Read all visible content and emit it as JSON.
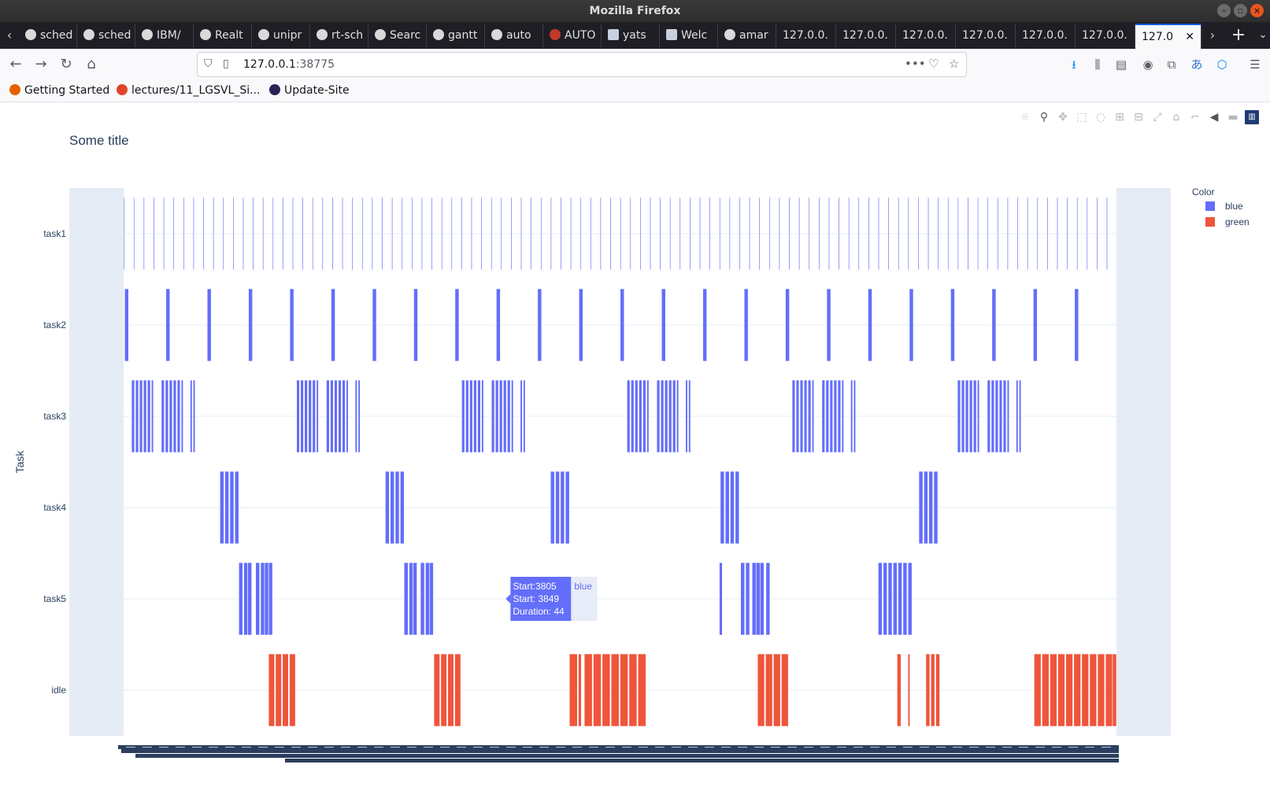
{
  "window": {
    "title": "Mozilla Firefox"
  },
  "tabs": [
    {
      "label": "sched",
      "icon": "github-icon"
    },
    {
      "label": "sched",
      "icon": "github-icon"
    },
    {
      "label": "IBM/",
      "icon": "github-icon"
    },
    {
      "label": "Realt",
      "icon": "github-icon"
    },
    {
      "label": "unipr",
      "icon": "github-icon"
    },
    {
      "label": "rt-sch",
      "icon": "github-icon"
    },
    {
      "label": "Searc",
      "icon": "github-icon"
    },
    {
      "label": "gantt",
      "icon": "github-icon"
    },
    {
      "label": "auto",
      "icon": "github-icon"
    },
    {
      "label": "AUTO",
      "icon": "autosar-icon"
    },
    {
      "label": "yats",
      "icon": "document-icon"
    },
    {
      "label": "Welc",
      "icon": "document-icon"
    },
    {
      "label": "amar",
      "icon": "github-icon"
    },
    {
      "label": "127.0.0.",
      "icon": ""
    },
    {
      "label": "127.0.0.",
      "icon": ""
    },
    {
      "label": "127.0.0.",
      "icon": ""
    },
    {
      "label": "127.0.0.",
      "icon": ""
    },
    {
      "label": "127.0.0.",
      "icon": ""
    },
    {
      "label": "127.0.0.",
      "icon": ""
    },
    {
      "label": "127.0",
      "icon": "",
      "active": true
    }
  ],
  "navbar": {
    "url_host": "127.0.0.1",
    "url_port": ":38775"
  },
  "bookmarks": [
    {
      "label": "Getting Started",
      "icon": "firefox-icon"
    },
    {
      "label": "lectures/11_LGSVL_Si...",
      "icon": "gitlab-icon"
    },
    {
      "label": "Update-Site",
      "icon": "eclipse-icon"
    }
  ],
  "chart_data": {
    "type": "gantt",
    "title": "Some title",
    "ylabel": "Task",
    "xlabel": "",
    "categories": [
      "task1",
      "task2",
      "task3",
      "task4",
      "task5",
      "idle"
    ],
    "legend": {
      "title": "Color",
      "position": "top-right",
      "items": [
        {
          "name": "blue",
          "color": "#636efa"
        },
        {
          "name": "green",
          "color": "#ef553b"
        }
      ]
    },
    "xlim": [
      0,
      10000
    ],
    "series": [
      {
        "name": "task1",
        "color": "blue",
        "period": 100,
        "duration": 10,
        "start": 0,
        "count": 100
      },
      {
        "name": "task2",
        "color": "blue",
        "period": 416,
        "duration": 40,
        "start": 10,
        "count": 24
      },
      {
        "name": "task3",
        "color": "blue",
        "bursts": [
          80,
          1742,
          3405,
          5070,
          6733,
          8399
        ],
        "burst_pattern": [
          [
            0,
            30
          ],
          [
            40,
            30
          ],
          [
            80,
            30
          ],
          [
            120,
            30
          ],
          [
            160,
            30
          ],
          [
            200,
            20
          ],
          [
            300,
            30
          ],
          [
            340,
            30
          ],
          [
            380,
            30
          ],
          [
            420,
            30
          ],
          [
            460,
            30
          ],
          [
            500,
            20
          ],
          [
            590,
            20
          ],
          [
            620,
            20
          ]
        ]
      },
      {
        "name": "task4",
        "color": "blue",
        "bursts": [
          970,
          2636,
          4300,
          6010,
          8010
        ],
        "burst_pattern": [
          [
            0,
            40
          ],
          [
            50,
            40
          ],
          [
            100,
            40
          ],
          [
            150,
            40
          ]
        ]
      },
      {
        "name": "task5",
        "color": "blue",
        "segments": [
          [
            1160,
            40
          ],
          [
            1210,
            40
          ],
          [
            1250,
            40
          ],
          [
            1330,
            40
          ],
          [
            1380,
            40
          ],
          [
            1420,
            40
          ],
          [
            1460,
            40
          ],
          [
            2825,
            40
          ],
          [
            2875,
            40
          ],
          [
            2915,
            40
          ],
          [
            2990,
            40
          ],
          [
            3040,
            40
          ],
          [
            3080,
            40
          ],
          [
            6000,
            30
          ],
          [
            6215,
            40
          ],
          [
            6265,
            40
          ],
          [
            6330,
            40
          ],
          [
            6370,
            40
          ],
          [
            6410,
            40
          ],
          [
            6470,
            40
          ],
          [
            7600,
            40
          ],
          [
            7650,
            40
          ],
          [
            7700,
            40
          ],
          [
            7750,
            40
          ],
          [
            7800,
            40
          ],
          [
            7850,
            40
          ],
          [
            7900,
            40
          ]
        ]
      },
      {
        "name": "idle",
        "color": "green",
        "segments": [
          [
            1460,
            60
          ],
          [
            1530,
            60
          ],
          [
            1600,
            60
          ],
          [
            1670,
            60
          ],
          [
            3125,
            60
          ],
          [
            3195,
            60
          ],
          [
            3265,
            60
          ],
          [
            3335,
            60
          ],
          [
            4490,
            80
          ],
          [
            4580,
            30
          ],
          [
            4640,
            80
          ],
          [
            4730,
            80
          ],
          [
            4820,
            80
          ],
          [
            4910,
            80
          ],
          [
            5000,
            80
          ],
          [
            5090,
            80
          ],
          [
            5180,
            80
          ],
          [
            6385,
            70
          ],
          [
            6465,
            70
          ],
          [
            6545,
            70
          ],
          [
            6625,
            70
          ],
          [
            7790,
            40
          ],
          [
            7900,
            20
          ],
          [
            8080,
            40
          ],
          [
            8130,
            40
          ],
          [
            8180,
            40
          ],
          [
            9170,
            70
          ],
          [
            9250,
            70
          ],
          [
            9330,
            70
          ],
          [
            9410,
            70
          ],
          [
            9490,
            70
          ],
          [
            9570,
            70
          ],
          [
            9650,
            70
          ],
          [
            9730,
            70
          ],
          [
            9810,
            70
          ],
          [
            9890,
            70
          ],
          [
            9960,
            40
          ]
        ]
      }
    ],
    "hover": {
      "line1": "Start:3805",
      "line2": "Start: 3849",
      "line3": "Duration: 44",
      "series_label": "blue",
      "x": 3805,
      "duration": 44,
      "category": "task5"
    }
  }
}
